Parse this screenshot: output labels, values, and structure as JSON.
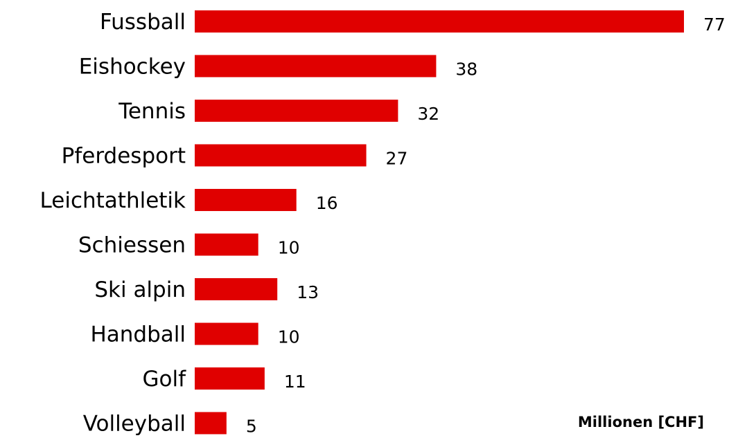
{
  "chart_data": {
    "type": "bar",
    "orientation": "horizontal",
    "categories": [
      "Fussball",
      "Eishockey",
      "Tennis",
      "Pferdesport",
      "Leichtathletik",
      "Schiessen",
      "Ski alpin",
      "Handball",
      "Golf",
      "Volleyball"
    ],
    "values": [
      77,
      38,
      32,
      27,
      16,
      10,
      13,
      10,
      11,
      5
    ],
    "data_labels": [
      "77",
      "38",
      "32",
      "27",
      "16",
      "10",
      "13",
      "10",
      "11",
      "5"
    ],
    "unit_label": "Millionen [CHF]",
    "xlim": [
      0,
      80
    ],
    "grid": false,
    "legend": "none",
    "bar_color": "#e00000"
  }
}
